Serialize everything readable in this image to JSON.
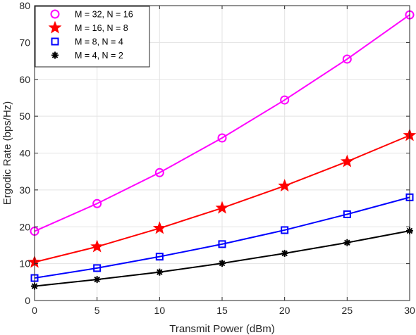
{
  "chart_data": {
    "type": "line",
    "xlabel": "Transmit Power (dBm)",
    "ylabel": "Ergodic Rate (bps/Hz)",
    "xlim": [
      0,
      30
    ],
    "ylim": [
      0,
      80
    ],
    "xticks": [
      "0",
      "5",
      "10",
      "15",
      "20",
      "25",
      "30"
    ],
    "yticks": [
      "0",
      "10",
      "20",
      "30",
      "40",
      "50",
      "60",
      "70",
      "80"
    ],
    "grid": true,
    "legend_position": "top-left",
    "x": [
      0,
      5,
      10,
      15,
      20,
      25,
      30
    ],
    "series": [
      {
        "name": "M = 32, N = 16",
        "marker": "circle",
        "color": "#ff00ff",
        "values": [
          18.8,
          26.3,
          34.7,
          44.1,
          54.4,
          65.5,
          77.5
        ]
      },
      {
        "name": "M = 16, N = 8",
        "marker": "star",
        "color": "#ff0000",
        "values": [
          10.4,
          14.6,
          19.6,
          25.1,
          31.1,
          37.7,
          44.8
        ]
      },
      {
        "name": "M = 8, N = 4",
        "marker": "square",
        "color": "#0000ff",
        "values": [
          6.1,
          8.8,
          11.9,
          15.3,
          19.1,
          23.4,
          28.0
        ]
      },
      {
        "name": "M = 4, N = 2",
        "marker": "asterisk",
        "color": "#000000",
        "values": [
          3.9,
          5.7,
          7.7,
          10.1,
          12.8,
          15.7,
          18.9
        ]
      }
    ]
  }
}
